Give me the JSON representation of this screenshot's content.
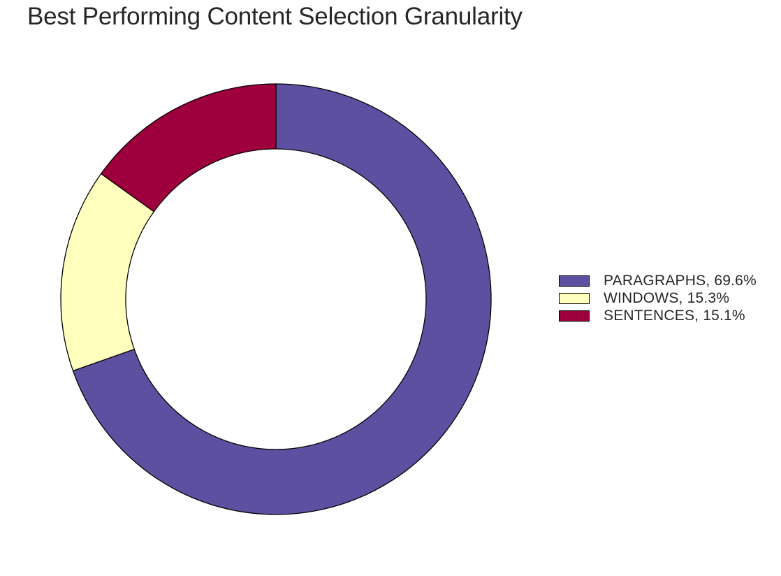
{
  "chart_data": {
    "type": "pie",
    "subtype": "donut",
    "title": "Best Performing Content Selection Granularity",
    "start_angle": "top",
    "direction": "clockwise",
    "slices": [
      {
        "label": "PARAGRAPHS, 69.6%",
        "category": "PARAGRAPHS",
        "value": 69.6,
        "color": "#5e50a1"
      },
      {
        "label": "WINDOWS, 15.3%",
        "category": "WINDOWS",
        "value": 15.3,
        "color": "#ffffbe"
      },
      {
        "label": "SENTENCES, 15.1%",
        "category": "SENTENCES",
        "value": 15.1,
        "color": "#9e003e"
      }
    ],
    "edge_color": "#000000",
    "legend_position": "right"
  }
}
